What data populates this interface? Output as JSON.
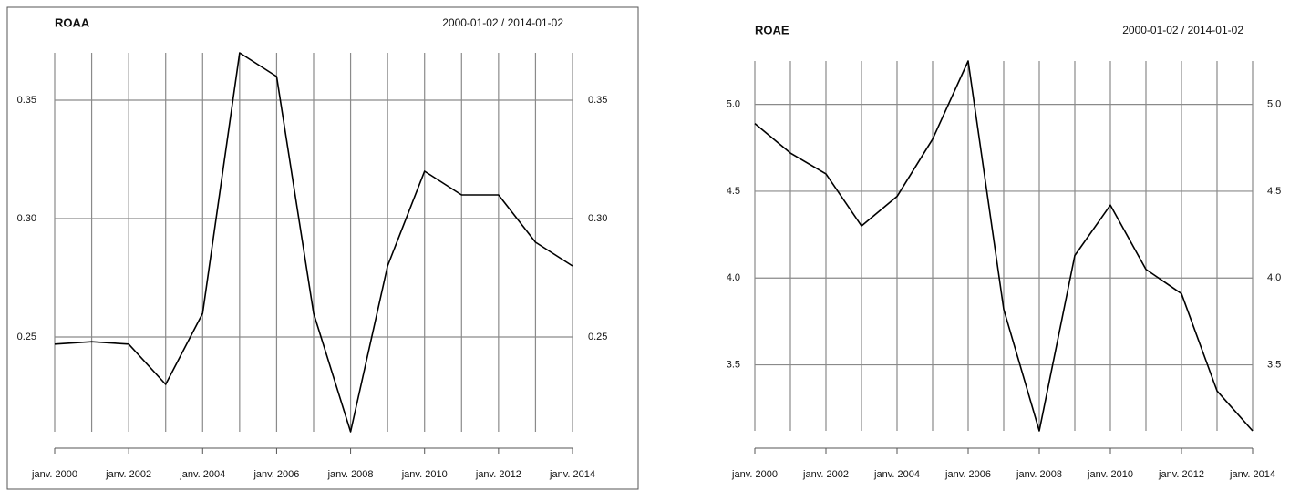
{
  "chart_data": [
    {
      "type": "line",
      "title": "ROAA",
      "subtitle": "2000-01-02 / 2014-01-02",
      "x": [
        2000,
        2001,
        2002,
        2003,
        2004,
        2005,
        2006,
        2007,
        2008,
        2009,
        2010,
        2011,
        2012,
        2013,
        2014
      ],
      "values": [
        0.247,
        0.248,
        0.247,
        0.23,
        0.26,
        0.37,
        0.36,
        0.26,
        0.21,
        0.28,
        0.32,
        0.31,
        0.31,
        0.29,
        0.28
      ],
      "color": "#000000",
      "xlim": [
        2000,
        2014
      ],
      "xticks": [
        {
          "value": 2000,
          "label": "janv. 2000"
        },
        {
          "value": 2002,
          "label": "janv. 2002"
        },
        {
          "value": 2004,
          "label": "janv. 2004"
        },
        {
          "value": 2006,
          "label": "janv. 2006"
        },
        {
          "value": 2008,
          "label": "janv. 2008"
        },
        {
          "value": 2010,
          "label": "janv. 2010"
        },
        {
          "value": 2012,
          "label": "janv. 2012"
        },
        {
          "value": 2014,
          "label": "janv. 2014"
        }
      ],
      "ylim": [
        0.21,
        0.37
      ],
      "yticks": [
        {
          "value": 0.25,
          "label": "0.25"
        },
        {
          "value": 0.3,
          "label": "0.30"
        },
        {
          "value": 0.35,
          "label": "0.35"
        }
      ],
      "grid": true
    },
    {
      "type": "line",
      "title": "ROAE",
      "subtitle": "2000-01-02 / 2014-01-02",
      "x": [
        2000,
        2001,
        2002,
        2003,
        2004,
        2005,
        2006,
        2007,
        2008,
        2009,
        2010,
        2011,
        2012,
        2013,
        2014
      ],
      "values": [
        4.89,
        4.72,
        4.6,
        4.3,
        4.47,
        4.8,
        5.25,
        3.82,
        3.12,
        4.13,
        4.42,
        4.05,
        3.91,
        3.35,
        3.12
      ],
      "color": "#000000",
      "xlim": [
        2000,
        2014
      ],
      "xticks": [
        {
          "value": 2000,
          "label": "janv. 2000"
        },
        {
          "value": 2002,
          "label": "janv. 2002"
        },
        {
          "value": 2004,
          "label": "janv. 2004"
        },
        {
          "value": 2006,
          "label": "janv. 2006"
        },
        {
          "value": 2008,
          "label": "janv. 2008"
        },
        {
          "value": 2010,
          "label": "janv. 2010"
        },
        {
          "value": 2012,
          "label": "janv. 2012"
        },
        {
          "value": 2014,
          "label": "janv. 2014"
        }
      ],
      "ylim": [
        3.12,
        5.25
      ],
      "yticks": [
        {
          "value": 3.5,
          "label": "3.5"
        },
        {
          "value": 4.0,
          "label": "4.0"
        },
        {
          "value": 4.5,
          "label": "4.5"
        },
        {
          "value": 5.0,
          "label": "5.0"
        }
      ],
      "grid": true
    }
  ]
}
